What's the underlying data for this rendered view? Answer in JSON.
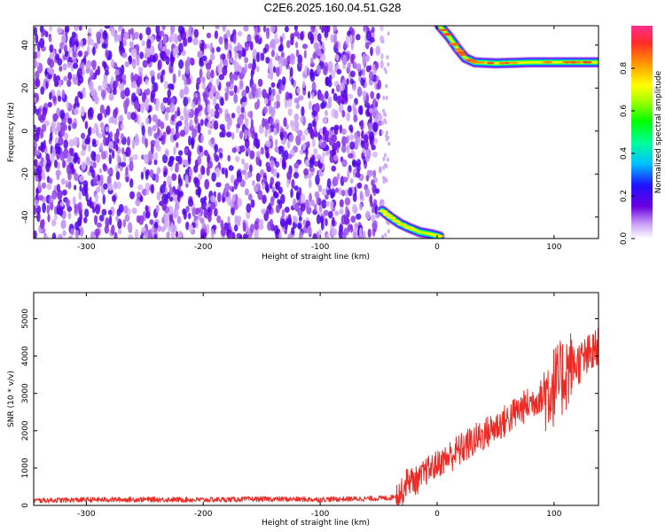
{
  "figure_title": "C2E6.2025.160.04.51.G28",
  "chart_data": [
    {
      "type": "heatmap",
      "xlabel": "Height of straight line (km)",
      "ylabel": "Frequency (Hz)",
      "xlim": [
        -345,
        138
      ],
      "ylim": [
        -50,
        49
      ],
      "xticks": [
        -300,
        -200,
        -100,
        0,
        100
      ],
      "yticks": [
        -40,
        -20,
        0,
        20,
        40
      ],
      "colorbar": {
        "label": "Normalized spectral amplitude",
        "range": [
          0.0,
          1.0
        ],
        "ticks": [
          0.0,
          0.2,
          0.4,
          0.6,
          0.8
        ],
        "tick_labels": [
          "0.0",
          "0.2",
          "0.4",
          "0.6",
          "0.8"
        ],
        "colormap": "rainbow"
      },
      "noise_region": {
        "x_range": [
          -345,
          -47
        ],
        "y_range": [
          -50,
          49
        ],
        "level": 0.1
      },
      "tracks": [
        {
          "points": [
            [
              2,
              49
            ],
            [
              10,
              44
            ],
            [
              18,
              38
            ],
            [
              24,
              34
            ],
            [
              32,
              32
            ],
            [
              50,
              31.5
            ],
            [
              80,
              32
            ],
            [
              100,
              32
            ],
            [
              120,
              32
            ],
            [
              138,
              32
            ]
          ],
          "amplitude": 0.9
        },
        {
          "points": [
            [
              -47,
              -37
            ],
            [
              -40,
              -40
            ],
            [
              -32,
              -43
            ],
            [
              -24,
              -45
            ],
            [
              -15,
              -47
            ],
            [
              -5,
              -48
            ],
            [
              2,
              -49
            ]
          ],
          "amplitude": 0.75
        }
      ]
    },
    {
      "type": "line",
      "xlabel": "Height of straight line (km)",
      "ylabel": "SNR (10 * v/v)",
      "xlim": [
        -345,
        138
      ],
      "ylim": [
        0,
        5700
      ],
      "xticks": [
        -300,
        -200,
        -100,
        0,
        100
      ],
      "yticks": [
        0,
        1000,
        2000,
        3000,
        4000,
        5000
      ],
      "series": [
        {
          "color": "#ee2a24",
          "x": [
            -345,
            -300,
            -250,
            -200,
            -150,
            -100,
            -60,
            -40,
            -30,
            -25,
            -20,
            -15,
            -10,
            -5,
            0,
            10,
            20,
            30,
            40,
            50,
            60,
            70,
            80,
            90,
            100,
            105,
            110,
            115,
            120,
            130,
            138
          ],
          "y": [
            130,
            150,
            160,
            150,
            170,
            160,
            180,
            200,
            350,
            700,
            650,
            700,
            900,
            1000,
            1100,
            1300,
            1500,
            1700,
            1900,
            2100,
            2300,
            2550,
            2750,
            2950,
            3200,
            3300,
            3600,
            3700,
            3800,
            4000,
            4200
          ]
        }
      ]
    }
  ]
}
